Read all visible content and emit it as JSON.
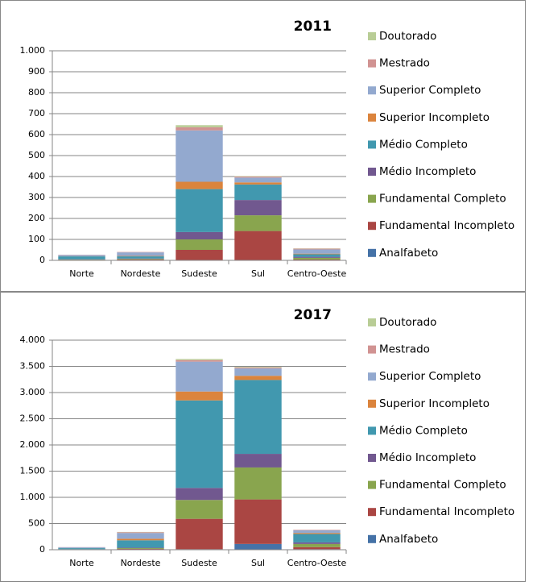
{
  "chart_data": [
    {
      "type": "bar",
      "stacked": true,
      "title": "2011",
      "categories": [
        "Norte",
        "Nordeste",
        "Sudeste",
        "Sul",
        "Centro-Oeste"
      ],
      "ylim": [
        0,
        1000
      ],
      "yticks": [
        0,
        100,
        200,
        300,
        400,
        500,
        600,
        700,
        800,
        900,
        {
          "value": 1000,
          "label": "1.000"
        }
      ],
      "grid": true,
      "legend": "right",
      "series": [
        {
          "name": "Analfabeto",
          "color": "#4572A7",
          "values": [
            1,
            1,
            2,
            2,
            1
          ]
        },
        {
          "name": "Fundamental Incompleto",
          "color": "#AA4643",
          "values": [
            2,
            3,
            48,
            138,
            3
          ]
        },
        {
          "name": "Fundamental Completo",
          "color": "#89A54E",
          "values": [
            1,
            3,
            50,
            75,
            8
          ]
        },
        {
          "name": "Médio Incompleto",
          "color": "#71588F",
          "values": [
            1,
            2,
            35,
            73,
            5
          ]
        },
        {
          "name": "Médio Completo",
          "color": "#4198AF",
          "values": [
            14,
            10,
            205,
            74,
            12
          ]
        },
        {
          "name": "Superior Incompleto",
          "color": "#DB843D",
          "values": [
            1,
            2,
            35,
            10,
            3
          ]
        },
        {
          "name": "Superior Completo",
          "color": "#93A9CF",
          "values": [
            6,
            17,
            245,
            23,
            20
          ]
        },
        {
          "name": "Mestrado",
          "color": "#D19392",
          "values": [
            1,
            2,
            15,
            5,
            4
          ]
        },
        {
          "name": "Doutorado",
          "color": "#B9CD96",
          "values": [
            0,
            0,
            10,
            2,
            1
          ]
        }
      ]
    },
    {
      "type": "bar",
      "stacked": true,
      "title": "2017",
      "categories": [
        "Norte",
        "Nordeste",
        "Sudeste",
        "Sul",
        "Centro-Oeste"
      ],
      "ylim": [
        0,
        4000
      ],
      "yticks": [
        0,
        500,
        {
          "value": 1000,
          "label": "1.000"
        },
        {
          "value": 1500,
          "label": "1.500"
        },
        {
          "value": 2000,
          "label": "2.000"
        },
        {
          "value": 2500,
          "label": "2.500"
        },
        {
          "value": 3000,
          "label": "3.000"
        },
        {
          "value": 3500,
          "label": "3.500"
        },
        {
          "value": 4000,
          "label": "4.000"
        }
      ],
      "grid": true,
      "legend": "right",
      "series": [
        {
          "name": "Analfabeto",
          "color": "#4572A7",
          "values": [
            2,
            5,
            10,
            110,
            10
          ]
        },
        {
          "name": "Fundamental Incompleto",
          "color": "#AA4643",
          "values": [
            3,
            10,
            580,
            850,
            40
          ]
        },
        {
          "name": "Fundamental Completo",
          "color": "#89A54E",
          "values": [
            3,
            15,
            360,
            610,
            60
          ]
        },
        {
          "name": "Médio Incompleto",
          "color": "#71588F",
          "values": [
            2,
            10,
            230,
            260,
            30
          ]
        },
        {
          "name": "Médio Completo",
          "color": "#4198AF",
          "values": [
            20,
            140,
            1670,
            1410,
            160
          ]
        },
        {
          "name": "Superior Incompleto",
          "color": "#DB843D",
          "values": [
            3,
            30,
            170,
            80,
            20
          ]
        },
        {
          "name": "Superior Completo",
          "color": "#93A9CF",
          "values": [
            15,
            110,
            570,
            140,
            50
          ]
        },
        {
          "name": "Mestrado",
          "color": "#D19392",
          "values": [
            2,
            15,
            30,
            20,
            10
          ]
        },
        {
          "name": "Doutorado",
          "color": "#B9CD96",
          "values": [
            0,
            5,
            20,
            10,
            0
          ]
        }
      ]
    }
  ]
}
